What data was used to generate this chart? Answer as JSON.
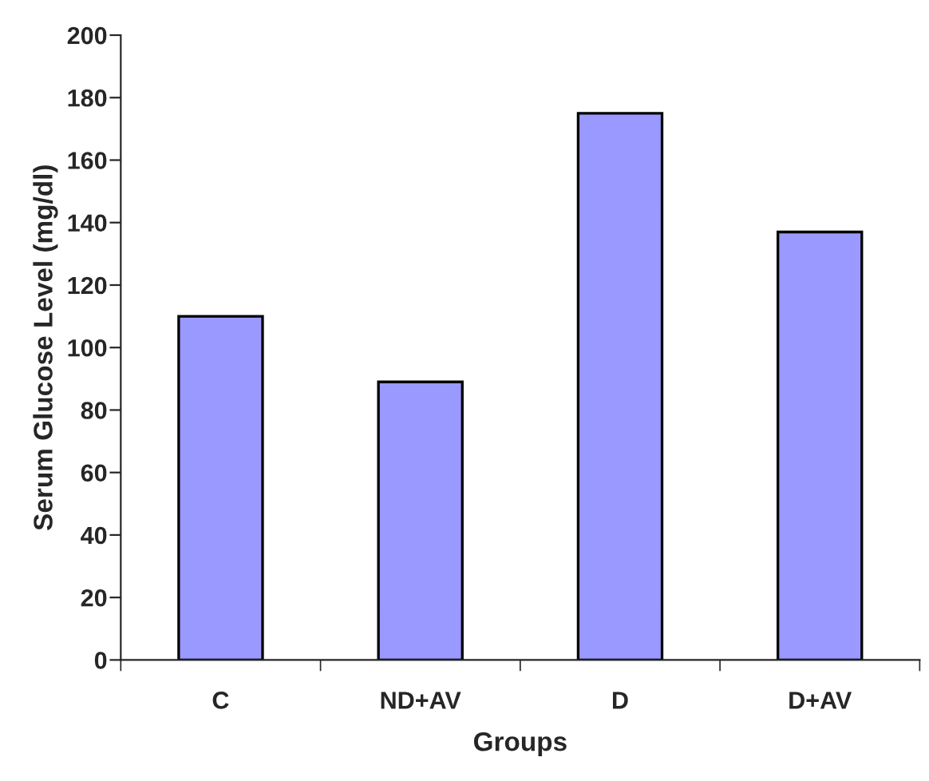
{
  "chart_data": {
    "type": "bar",
    "xlabel": "Groups",
    "ylabel": "Serum Glucose Level (mg/dl)",
    "categories": [
      "C",
      "ND+AV",
      "D",
      "D+AV"
    ],
    "values": [
      110,
      89,
      175,
      137
    ],
    "color": "#9999ff",
    "ylim": [
      0,
      200
    ],
    "yticks": [
      0,
      20,
      40,
      60,
      80,
      100,
      120,
      140,
      160,
      180,
      200
    ],
    "grid": false
  }
}
